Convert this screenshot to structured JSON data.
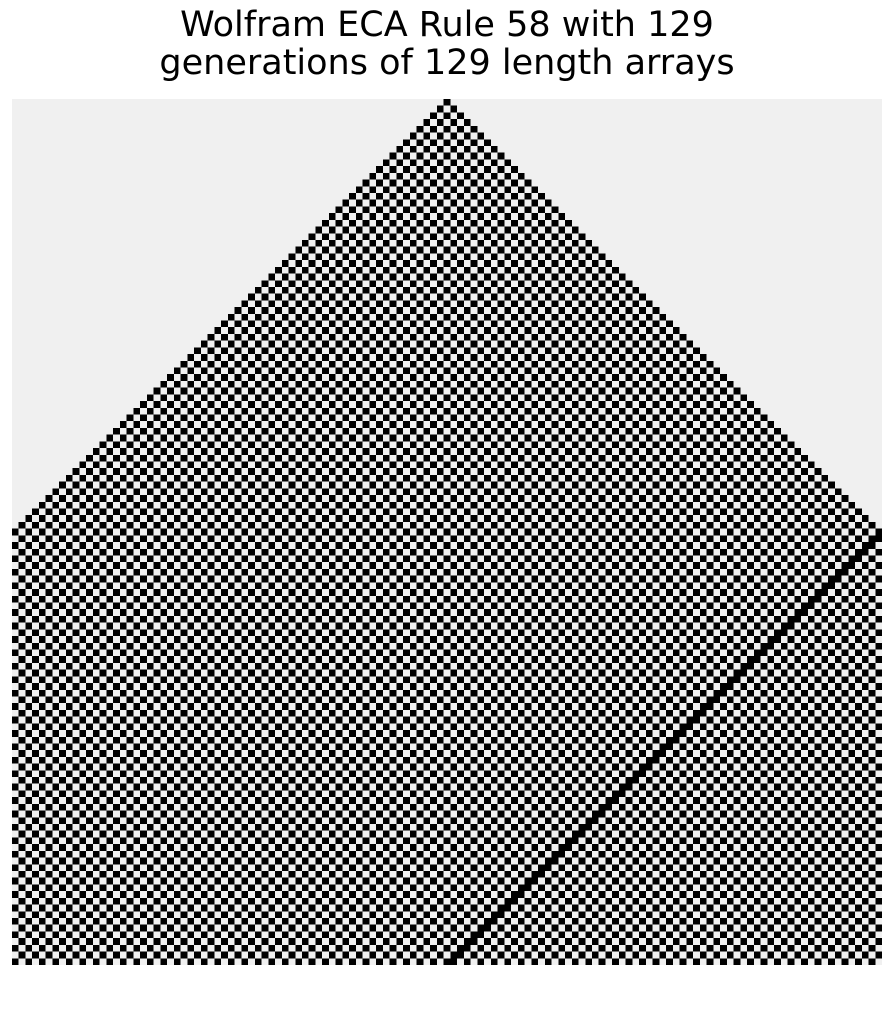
{
  "title": {
    "line1": "Wolfram ECA Rule 58 with 129",
    "line2": "generations of 129 length arrays"
  },
  "chart_data": {
    "type": "heatmap",
    "title": "Wolfram ECA Rule 58 with 129 generations of 129 length arrays",
    "rule": 58,
    "generations": 129,
    "array_length": 129,
    "initial_state": "single live cell at center (index 64)",
    "boundary": "periodic",
    "grid": false,
    "colors": {
      "live": "#000000",
      "dead": "#f0f0f0"
    }
  }
}
